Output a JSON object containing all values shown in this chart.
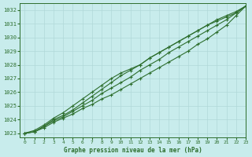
{
  "title": "",
  "xlabel": "Graphe pression niveau de la mer (hPa)",
  "ylabel": "",
  "background_color": "#c8ecec",
  "grid_color": "#b0d8d8",
  "line_color": "#2d6e2d",
  "marker_color": "#2d6e2d",
  "xlim": [
    -0.5,
    23
  ],
  "ylim": [
    1022.7,
    1032.5
  ],
  "yticks": [
    1023,
    1024,
    1025,
    1026,
    1027,
    1028,
    1029,
    1030,
    1031,
    1032
  ],
  "xticks": [
    0,
    1,
    2,
    3,
    4,
    5,
    6,
    7,
    8,
    9,
    10,
    11,
    12,
    13,
    14,
    15,
    16,
    17,
    18,
    19,
    20,
    21,
    22,
    23
  ],
  "series": [
    [
      1023.0,
      1023.1,
      1023.4,
      1023.8,
      1024.1,
      1024.4,
      1024.8,
      1025.1,
      1025.5,
      1025.8,
      1026.2,
      1026.6,
      1027.0,
      1027.4,
      1027.8,
      1028.2,
      1028.6,
      1029.0,
      1029.5,
      1029.9,
      1030.4,
      1030.9,
      1031.6,
      1032.3
    ],
    [
      1023.0,
      1023.1,
      1023.5,
      1023.9,
      1024.2,
      1024.6,
      1025.0,
      1025.4,
      1025.9,
      1026.3,
      1026.7,
      1027.1,
      1027.6,
      1028.0,
      1028.4,
      1028.9,
      1029.3,
      1029.7,
      1030.1,
      1030.5,
      1030.9,
      1031.3,
      1031.8,
      1032.3
    ],
    [
      1023.0,
      1023.1,
      1023.5,
      1024.0,
      1024.3,
      1024.7,
      1025.2,
      1025.7,
      1026.2,
      1026.7,
      1027.2,
      1027.6,
      1028.0,
      1028.5,
      1028.9,
      1029.3,
      1029.7,
      1030.1,
      1030.5,
      1030.9,
      1031.3,
      1031.6,
      1031.9,
      1032.3
    ],
    [
      1023.0,
      1023.2,
      1023.6,
      1024.1,
      1024.5,
      1025.0,
      1025.5,
      1026.0,
      1026.5,
      1027.0,
      1027.4,
      1027.7,
      1028.0,
      1028.5,
      1028.9,
      1029.3,
      1029.7,
      1030.1,
      1030.5,
      1030.9,
      1031.2,
      1031.5,
      1031.8,
      1032.3
    ]
  ]
}
